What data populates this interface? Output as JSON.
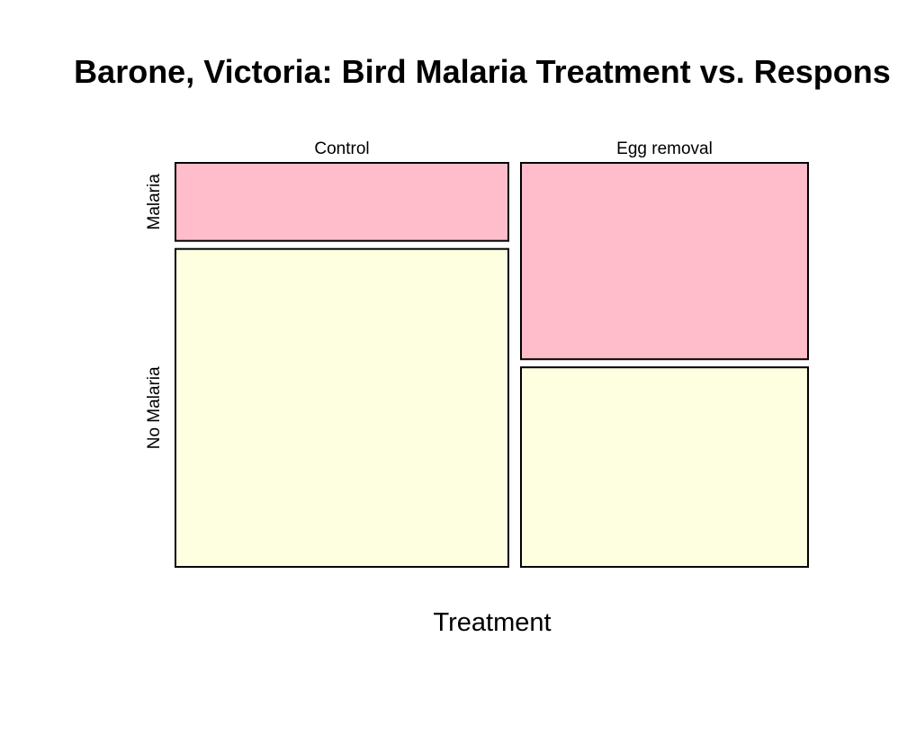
{
  "chart_data": {
    "type": "mosaic",
    "title": "Barone, Victoria: Bird Malaria Treatment vs. Respons",
    "xlabel": "Treatment",
    "ylabel": "",
    "categories": [
      "Control",
      "Egg removal"
    ],
    "category_proportions": [
      0.537,
      0.463
    ],
    "rows": [
      {
        "name": "Malaria",
        "color": "#ffbccb"
      },
      {
        "name": "No Malaria",
        "color": "#fefee1"
      }
    ],
    "series": [
      {
        "name": "Malaria",
        "values": [
          0.197,
          0.496
        ]
      },
      {
        "name": "No Malaria",
        "values": [
          0.803,
          0.504
        ]
      }
    ]
  }
}
